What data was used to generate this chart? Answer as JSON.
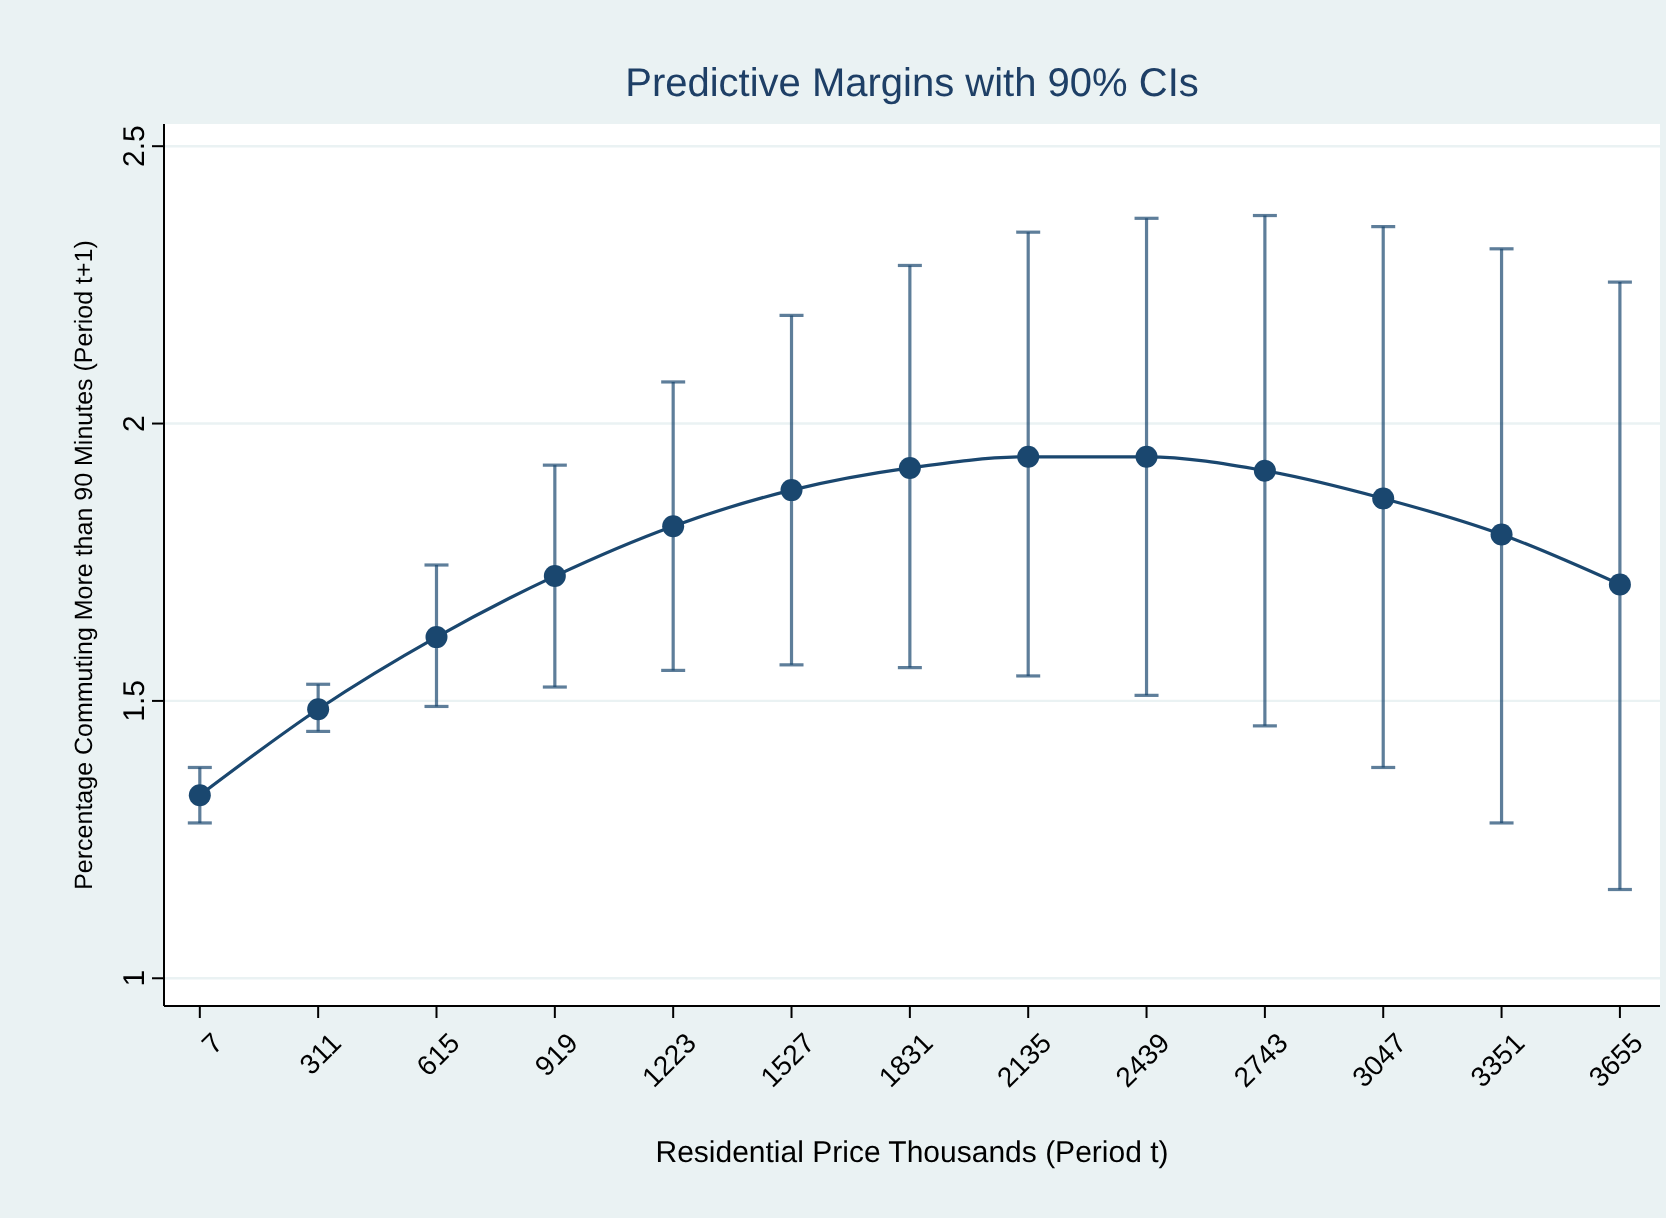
{
  "chart_data": {
    "type": "line",
    "title": "Predictive Margins with 90% CIs",
    "xlabel": "Residential Price Thousands (Period t)",
    "ylabel": "Percentage Commuting More than 90 Minutes (Period t+1)",
    "x": [
      7,
      311,
      615,
      919,
      1223,
      1527,
      1831,
      2135,
      2439,
      2743,
      3047,
      3351,
      3655
    ],
    "series": [
      {
        "color": "#1a476f",
        "values": [
          1.33,
          1.485,
          1.615,
          1.725,
          1.815,
          1.88,
          1.92,
          1.94,
          1.94,
          1.915,
          1.865,
          1.8,
          1.71
        ],
        "errors": [
          [
            1.28,
            1.38
          ],
          [
            1.445,
            1.53
          ],
          [
            1.49,
            1.745
          ],
          [
            1.525,
            1.925
          ],
          [
            1.555,
            2.075
          ],
          [
            1.565,
            2.195
          ],
          [
            1.56,
            2.285
          ],
          [
            1.545,
            2.345
          ],
          [
            1.51,
            2.37
          ],
          [
            1.455,
            2.375
          ],
          [
            1.38,
            2.355
          ],
          [
            1.28,
            2.315
          ],
          [
            1.16,
            2.255
          ]
        ]
      }
    ],
    "xlim": [
      -85,
      3758
    ],
    "xticks": [
      7,
      311,
      615,
      919,
      1223,
      1527,
      1831,
      2135,
      2439,
      2743,
      3047,
      3351,
      3655
    ],
    "ylim": [
      0.95,
      2.54
    ],
    "yticks": [
      1,
      1.5,
      2,
      2.5
    ],
    "grid": "y",
    "marker": "circle",
    "line_style": "solid"
  }
}
